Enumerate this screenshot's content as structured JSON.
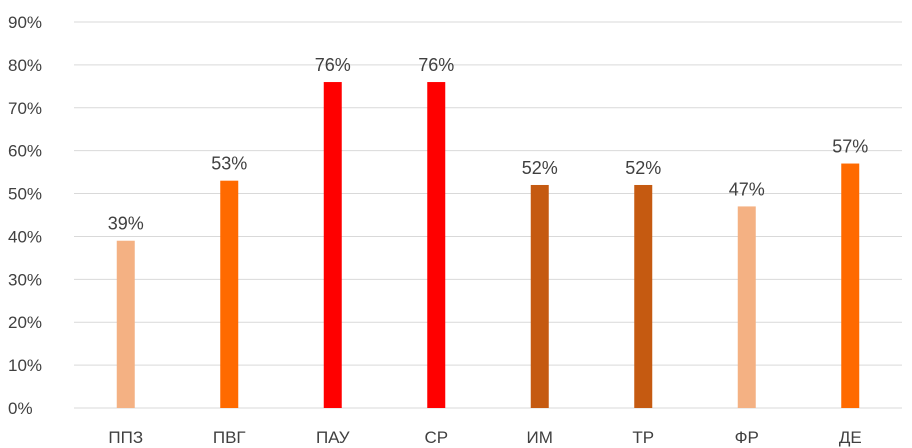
{
  "chart_data": {
    "type": "bar",
    "title": "",
    "xlabel": "",
    "ylabel": "",
    "categories": [
      "ППЗ",
      "ПВГ",
      "ПАУ",
      "СР",
      "ИМ",
      "ТР",
      "ФР",
      "ДЕ"
    ],
    "values": [
      39,
      53,
      76,
      76,
      52,
      52,
      47,
      57
    ],
    "data_labels": [
      "39%",
      "53%",
      "76%",
      "76%",
      "52%",
      "52%",
      "47%",
      "57%"
    ],
    "bar_colors": [
      "#F4B183",
      "#FF6A00",
      "#FF0000",
      "#FF0000",
      "#C55A11",
      "#C55A11",
      "#F4B183",
      "#FF6A00"
    ],
    "ylim": [
      0,
      90
    ],
    "y_ticks": [
      0,
      10,
      20,
      30,
      40,
      50,
      60,
      70,
      80,
      90
    ],
    "y_tick_labels": [
      "0%",
      "10%",
      "20%",
      "30%",
      "40%",
      "50%",
      "60%",
      "70%",
      "80%",
      "90%"
    ],
    "grid": true,
    "legend": "none",
    "colors": {
      "gridline": "#D9D9D9",
      "text": "#404040"
    }
  }
}
